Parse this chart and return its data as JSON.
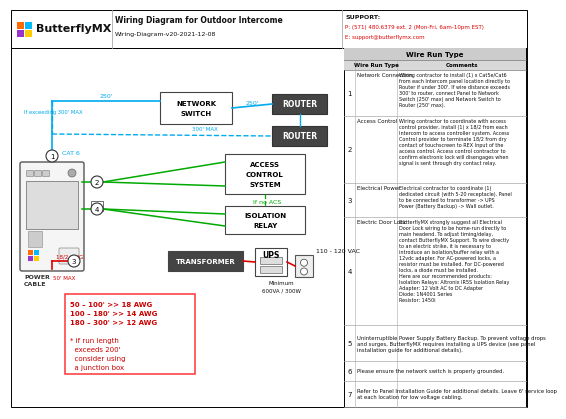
{
  "title": "Wiring Diagram for Outdoor Intercome",
  "subtitle": "Wiring-Diagram-v20-2021-12-08",
  "logo_text": "ButterflyMX",
  "support_line1": "SUPPORT:",
  "support_line2": "P: (571) 480.6379 ext. 2 (Mon-Fri, 6am-10pm EST)",
  "support_line3": "E: support@butterflymx.com",
  "bg_color": "#ffffff",
  "cyan_color": "#00aaee",
  "green_color": "#00aa00",
  "red_color": "#dd0000",
  "dark_red": "#cc0000",
  "pink_border": "#ff4444",
  "table_rows": [
    {
      "num": "1",
      "type": "Network Connection",
      "comment": "Wiring contractor to install (1) x Cat5e/Cat6\nfrom each Intercom panel location directly to\nRouter if under 300'. If wire distance exceeds\n300' to router, connect Panel to Network\nSwitch (250' max) and Network Switch to\nRouter (250' max)."
    },
    {
      "num": "2",
      "type": "Access Control",
      "comment": "Wiring contractor to coordinate with access\ncontrol provider, install (1) x 18/2 from each\nIntercom to access controller system. Access\nControl provider to terminate 18/2 from dry\ncontact of touchscreen to REX Input of the\naccess control. Access control contractor to\nconfirm electronic lock will disengages when\nsignal is sent through dry contact relay."
    },
    {
      "num": "3",
      "type": "Electrical Power",
      "comment": "Electrical contractor to coordinate (1)\ndedicated circuit (with 5-20 receptacle). Panel\nto be connected to transformer -> UPS\nPower (Battery Backup) -> Wall outlet."
    },
    {
      "num": "4",
      "type": "Electric Door Lock",
      "comment": "ButterflyMX strongly suggest all Electrical\nDoor Lock wiring to be home-run directly to\nmain headend. To adjust timing/delay,\ncontact ButterflyMX Support. To wire directly\nto an electric strike, it is necessary to\nintroduce an isolation/buffer relay with a\n12vdc adapter. For AC-powered locks, a\nresistor must be installed. For DC-powered\nlocks, a diode must be installed.\nHere are our recommended products:\nIsolation Relays: Altronix IR5S Isolation Relay\nAdapter: 12 Volt AC to DC Adapter\nDiode: 1N4001 Series\nResistor: 1450i"
    },
    {
      "num": "5",
      "type": "Uninterruptible Power Supply Battery Backup. To prevent voltage drops\nand surges, ButterflyMX requires installing a UPS device (see panel\ninstallation guide for additional details).",
      "comment": ""
    },
    {
      "num": "6",
      "type": "Please ensure the network switch is properly grounded.",
      "comment": ""
    },
    {
      "num": "7",
      "type": "Refer to Panel Installation Guide for additional details. Leave 6' service loop\nat each location for low voltage cabling.",
      "comment": ""
    }
  ]
}
